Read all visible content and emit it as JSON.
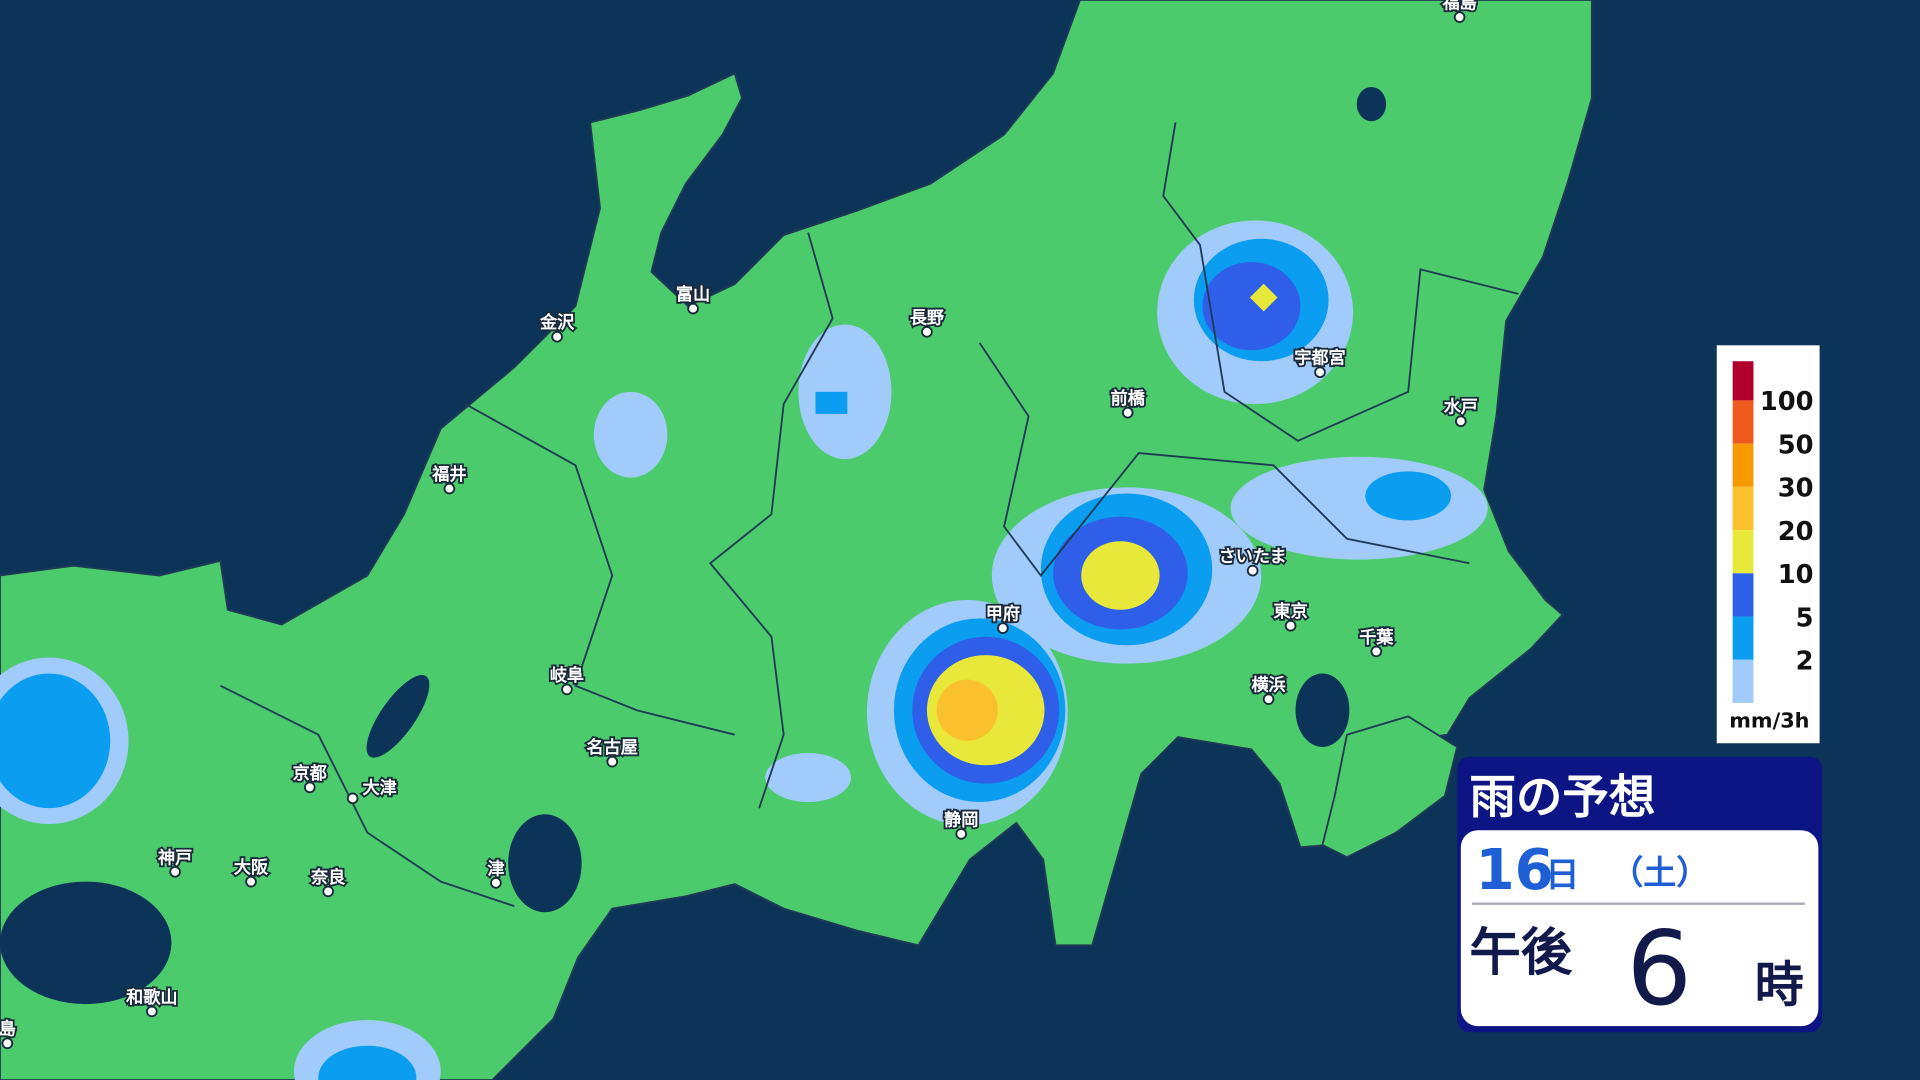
{
  "map": {
    "cities": [
      "福島",
      "富山",
      "金沢",
      "長野",
      "福井",
      "前橋",
      "宇都宮",
      "水戸",
      "さいたま",
      "甲府",
      "東京",
      "千葉",
      "横浜",
      "岐阜",
      "名古屋",
      "京都",
      "大津",
      "静岡",
      "神戸",
      "大阪",
      "奈良",
      "津",
      "和歌山",
      "島"
    ]
  },
  "legend": {
    "levels": [
      100,
      50,
      30,
      20,
      10,
      5,
      2
    ],
    "unit": "mm/3h"
  },
  "panel": {
    "title": "雨の予想",
    "day": "16",
    "day_suffix": "日",
    "weekday": "（土）",
    "period": "午後",
    "hour": "6",
    "hour_suffix": "時"
  }
}
